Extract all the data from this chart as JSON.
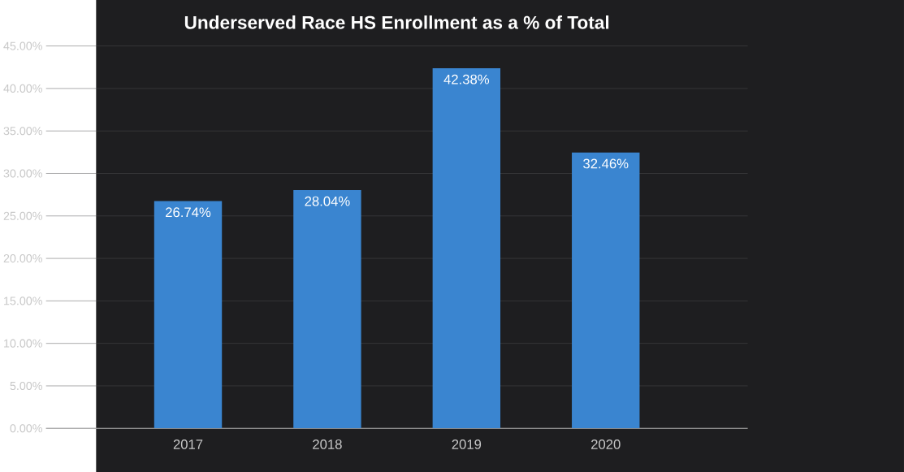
{
  "chart_data": {
    "type": "bar",
    "title": "Underserved Race HS Enrollment as a % of Total",
    "categories": [
      "2017",
      "2018",
      "2019",
      "2020"
    ],
    "values": [
      26.74,
      28.04,
      42.38,
      32.46
    ],
    "value_labels": [
      "26.74%",
      "28.04%",
      "42.38%",
      "32.46%"
    ],
    "color": "#3a85d0",
    "ylim": [
      0,
      45
    ],
    "yticks": [
      {
        "value": 0,
        "label": "0.00%"
      },
      {
        "value": 5,
        "label": "5.00%"
      },
      {
        "value": 10,
        "label": "10.00%"
      },
      {
        "value": 15,
        "label": "15.00%"
      },
      {
        "value": 20,
        "label": "20.00%"
      },
      {
        "value": 25,
        "label": "25.00%"
      },
      {
        "value": 30,
        "label": "30.00%"
      },
      {
        "value": 35,
        "label": "35.00%"
      },
      {
        "value": 40,
        "label": "40.00%"
      },
      {
        "value": 45,
        "label": "45.00%"
      }
    ],
    "grid": "y"
  }
}
